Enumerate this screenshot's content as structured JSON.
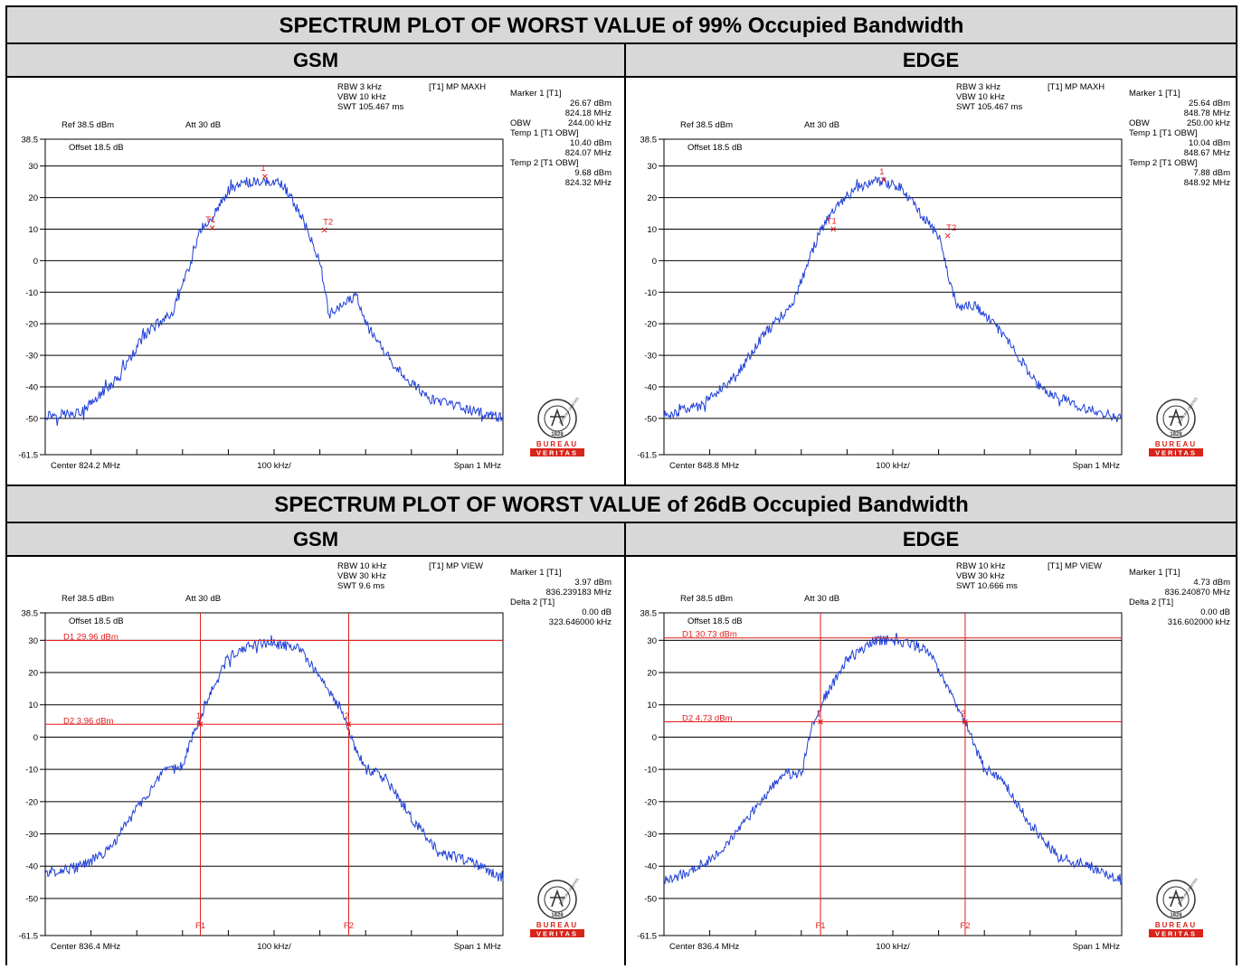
{
  "headers": {
    "top_title": "SPECTRUM PLOT OF WORST VALUE of 99% Occupied Bandwidth",
    "mid_title": "SPECTRUM PLOT OF WORST VALUE of 26dB Occupied Bandwidth",
    "col_left": "GSM",
    "col_right": "EDGE"
  },
  "colors": {
    "trace": "#1f3fd6",
    "marker": "#e11c1c",
    "grid": "#000000",
    "header_bg": "#d8d8d8",
    "logo_red": "#d9241b"
  },
  "logo": {
    "top": "BUREAU",
    "bottom": "VERITAS",
    "seal_text": "BUREAU VERITAS",
    "seal_year": "1828"
  },
  "chart_data": [
    {
      "type": "line",
      "section": "99% Occupied Bandwidth",
      "column": "GSM",
      "settings": {
        "rbw": "RBW 3 kHz",
        "vbw": "VBW 10 kHz",
        "swt": "SWT 105.467 ms",
        "trace_mode": "[T1] MP MAXH",
        "ref": "Ref 38.5 dBm",
        "att": "Att  30 dB",
        "offset": "Offset 18.5 dB"
      },
      "readout": [
        "Marker 1 [T1]",
        "26.67 dBm",
        "824.18 MHz",
        "OBW",
        "244.00 kHz",
        "Temp 1 [T1 OBW]",
        "10.40 dBm",
        "824.07 MHz",
        "Temp 2 [T1 OBW]",
        "9.68 dBm",
        "824.32 MHz"
      ],
      "x_axis": {
        "center_label": "Center 824.2 MHz",
        "div_label": "100 kHz/",
        "span_label": "Span 1 MHz",
        "xlim": [
          -500,
          500
        ],
        "unit": "kHz offset"
      },
      "y_axis": {
        "ylim": [
          -61.5,
          38.5
        ],
        "ticks": [
          38.5,
          30,
          20,
          10,
          0,
          -10,
          -20,
          -30,
          -40,
          -50,
          -61.5
        ],
        "tick_labels": [
          "38.5",
          "30",
          "20",
          "10",
          "0",
          "-10",
          "-20",
          "-30",
          "-40",
          "-50",
          "-61.5"
        ]
      },
      "trace_profile": {
        "x": [
          -500,
          -420,
          -340,
          -280,
          -220,
          -180,
          -160,
          -140,
          -100,
          -60,
          -20,
          0,
          20,
          60,
          100,
          120,
          180,
          200,
          260,
          340,
          420,
          500
        ],
        "y": [
          -49,
          -48,
          -37,
          -23,
          -16,
          0,
          10,
          13,
          22,
          25,
          25,
          25,
          24,
          14,
          0,
          -17,
          -11,
          -20,
          -33,
          -44,
          -47,
          -50
        ]
      },
      "marker_points": [
        {
          "label": "1",
          "x": -20,
          "y": 26.7
        },
        {
          "label": "T1",
          "x": -135,
          "y": 10.4
        },
        {
          "label": "T2",
          "x": 110,
          "y": 9.7
        }
      ],
      "h_lines": [],
      "v_lines": []
    },
    {
      "type": "line",
      "section": "99% Occupied Bandwidth",
      "column": "EDGE",
      "settings": {
        "rbw": "RBW 3 kHz",
        "vbw": "VBW 10 kHz",
        "swt": "SWT 105.467 ms",
        "trace_mode": "[T1] MP MAXH",
        "ref": "Ref 38.5 dBm",
        "att": "Att  30 dB",
        "offset": "Offset 18.5 dB"
      },
      "readout": [
        "Marker 1 [T1]",
        "25.64 dBm",
        "848.78 MHz",
        "OBW",
        "250.00 kHz",
        "Temp 1 [T1 OBW]",
        "10.04 dBm",
        "848.67 MHz",
        "Temp 2 [T1 OBW]",
        "7.88 dBm",
        "848.92 MHz"
      ],
      "x_axis": {
        "center_label": "Center 848.8 MHz",
        "div_label": "100 kHz/",
        "span_label": "Span 1 MHz",
        "xlim": [
          -500,
          500
        ],
        "unit": "kHz offset"
      },
      "y_axis": {
        "ylim": [
          -61.5,
          38.5
        ],
        "ticks": [
          38.5,
          30,
          20,
          10,
          0,
          -10,
          -20,
          -30,
          -40,
          -50,
          -61.5
        ],
        "tick_labels": [
          "38.5",
          "30",
          "20",
          "10",
          "0",
          "-10",
          "-20",
          "-30",
          "-40",
          "-50",
          "-61.5"
        ]
      },
      "trace_profile": {
        "x": [
          -500,
          -420,
          -340,
          -280,
          -220,
          -160,
          -120,
          -80,
          -40,
          -20,
          20,
          60,
          100,
          140,
          180,
          240,
          320,
          400,
          500
        ],
        "y": [
          -49,
          -46,
          -36,
          -23,
          -14,
          9,
          18,
          23,
          25,
          25,
          23,
          15,
          8,
          -15,
          -14,
          -23,
          -40,
          -46,
          -50
        ]
      },
      "marker_points": [
        {
          "label": "1",
          "x": -20,
          "y": 25.6
        },
        {
          "label": "T1",
          "x": -130,
          "y": 10.0
        },
        {
          "label": "T2",
          "x": 120,
          "y": 7.9
        }
      ],
      "h_lines": [],
      "v_lines": []
    },
    {
      "type": "line",
      "section": "26dB Occupied Bandwidth",
      "column": "GSM",
      "settings": {
        "rbw": "RBW 10 kHz",
        "vbw": "VBW 30 kHz",
        "swt": "SWT 9.6 ms",
        "trace_mode": "[T1] MP VIEW",
        "ref": "Ref 38.5 dBm",
        "att": "Att  30 dB",
        "offset": "Offset 18.5 dB"
      },
      "readout": [
        "Marker 1 [T1]",
        "3.97 dBm",
        "836.239183 MHz",
        "Delta 2 [T1]",
        "0.00 dB",
        "323.646000 kHz"
      ],
      "x_axis": {
        "center_label": "Center 836.4 MHz",
        "div_label": "100 kHz/",
        "span_label": "Span 1 MHz",
        "xlim": [
          -500,
          500
        ],
        "unit": "kHz offset"
      },
      "y_axis": {
        "ylim": [
          -61.5,
          38.5
        ],
        "ticks": [
          38.5,
          30,
          20,
          10,
          0,
          -10,
          -20,
          -30,
          -40,
          -50,
          -61.5
        ],
        "tick_labels": [
          "38.5",
          "30",
          "20",
          "10",
          "0",
          "-10",
          "-20",
          "-30",
          "-40",
          "-50",
          "-61.5"
        ]
      },
      "trace_profile": {
        "x": [
          -500,
          -420,
          -360,
          -300,
          -240,
          -200,
          -180,
          -150,
          -100,
          -40,
          0,
          60,
          100,
          150,
          160,
          200,
          240,
          300,
          360,
          420,
          500
        ],
        "y": [
          -42,
          -40,
          -35,
          -22,
          -11,
          -9,
          0,
          10,
          25,
          29,
          29,
          27,
          18,
          8,
          2,
          -10,
          -12,
          -25,
          -36,
          -38,
          -44
        ]
      },
      "marker_points": [
        {
          "label": "1",
          "x": -161,
          "y": 4.0
        },
        {
          "label": "2",
          "x": 163,
          "y": 4.0
        }
      ],
      "h_lines": [
        {
          "label": "D1 29.96 dBm",
          "y": 29.96
        },
        {
          "label": "D2 3.96 dBm",
          "y": 3.96
        }
      ],
      "v_lines": [
        {
          "label": "F1",
          "x": -161
        },
        {
          "label": "F2",
          "x": 163
        }
      ]
    },
    {
      "type": "line",
      "section": "26dB Occupied Bandwidth",
      "column": "EDGE",
      "settings": {
        "rbw": "RBW 10 kHz",
        "vbw": "VBW 30 kHz",
        "swt": "SWT 10.666 ms",
        "trace_mode": "[T1] MP VIEW",
        "ref": "Ref 38.5 dBm",
        "att": "Att  30 dB",
        "offset": "Offset 18.5 dB"
      },
      "readout": [
        "Marker 1 [T1]",
        "4.73 dBm",
        "836.240870 MHz",
        "Delta 2 [T1]",
        "0.00 dB",
        "316.602000 kHz"
      ],
      "x_axis": {
        "center_label": "Center 836.4 MHz",
        "div_label": "100 kHz/",
        "span_label": "Span 1 MHz",
        "xlim": [
          -500,
          500
        ],
        "unit": "kHz offset"
      },
      "y_axis": {
        "ylim": [
          -61.5,
          38.5
        ],
        "ticks": [
          38.5,
          30,
          20,
          10,
          0,
          -10,
          -20,
          -30,
          -40,
          -50,
          -61.5
        ],
        "tick_labels": [
          "38.5",
          "30",
          "20",
          "10",
          "0",
          "-10",
          "-20",
          "-30",
          "-40",
          "-50",
          "-61.5"
        ]
      },
      "trace_profile": {
        "x": [
          -500,
          -420,
          -360,
          -300,
          -240,
          -200,
          -180,
          -150,
          -100,
          -40,
          0,
          40,
          80,
          120,
          160,
          200,
          240,
          300,
          360,
          420,
          500
        ],
        "y": [
          -45,
          -40,
          -33,
          -22,
          -11,
          -12,
          2,
          12,
          24,
          30,
          30,
          29,
          26,
          16,
          4,
          -10,
          -13,
          -27,
          -37,
          -39,
          -45
        ]
      },
      "marker_points": [
        {
          "label": "1",
          "x": -158,
          "y": 4.7
        },
        {
          "label": "2",
          "x": 158,
          "y": 4.7
        }
      ],
      "h_lines": [
        {
          "label": "D1 30.73 dBm",
          "y": 30.73
        },
        {
          "label": "D2 4.73 dBm",
          "y": 4.73
        }
      ],
      "v_lines": [
        {
          "label": "F1",
          "x": -158
        },
        {
          "label": "F2",
          "x": 158
        }
      ]
    }
  ]
}
